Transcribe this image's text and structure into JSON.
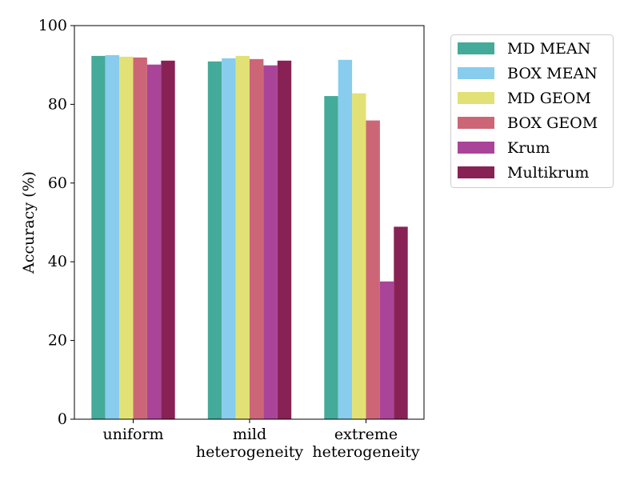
{
  "chart_data": {
    "type": "bar",
    "title": "",
    "xlabel": "",
    "ylabel": "Accuracy (%)",
    "ylim": [
      0,
      100
    ],
    "yticks": [
      0,
      20,
      40,
      60,
      80,
      100
    ],
    "grid": false,
    "legend_position": "outside-top-right",
    "categories": [
      [
        "uniform"
      ],
      [
        "mild",
        "heterogeneity"
      ],
      [
        "extreme",
        "heterogeneity"
      ]
    ],
    "series": [
      {
        "name": "MD MEAN",
        "color": "#44aa99",
        "values": [
          92.3,
          90.9,
          82.1
        ]
      },
      {
        "name": "BOX MEAN",
        "color": "#88ccee",
        "values": [
          92.5,
          91.7,
          91.3
        ]
      },
      {
        "name": "MD GEOM",
        "color": "#e2e175",
        "values": [
          92.1,
          92.3,
          82.8
        ]
      },
      {
        "name": "BOX GEOM",
        "color": "#cc6677",
        "values": [
          91.9,
          91.5,
          75.9
        ]
      },
      {
        "name": "Krum",
        "color": "#aa4499",
        "values": [
          90.1,
          89.9,
          35.0
        ]
      },
      {
        "name": "Multikrum",
        "color": "#882255",
        "values": [
          91.1,
          91.1,
          48.9
        ]
      }
    ]
  }
}
